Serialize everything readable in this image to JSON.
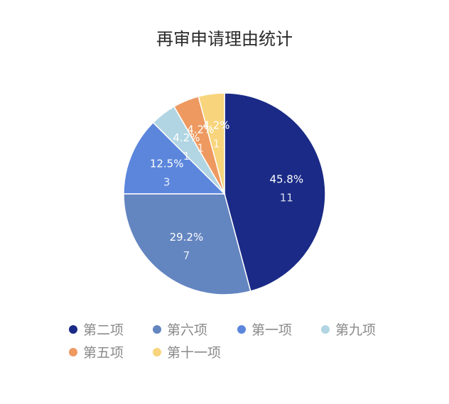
{
  "chart_data": {
    "type": "pie",
    "title": "再审申请理由统计",
    "categories": [
      "第二项",
      "第六项",
      "第一项",
      "第九项",
      "第五项",
      "第十一项"
    ],
    "values": [
      11,
      7,
      3,
      1,
      1,
      1
    ],
    "percent_labels": [
      "45.8%",
      "29.2%",
      "12.5%",
      "4.2%",
      "4.2%",
      "4.2%"
    ],
    "colors": [
      "#1a2a86",
      "#6385c0",
      "#5b86dc",
      "#b1d5e3",
      "#ee9960",
      "#f8d57c"
    ],
    "legend_position": "bottom"
  }
}
